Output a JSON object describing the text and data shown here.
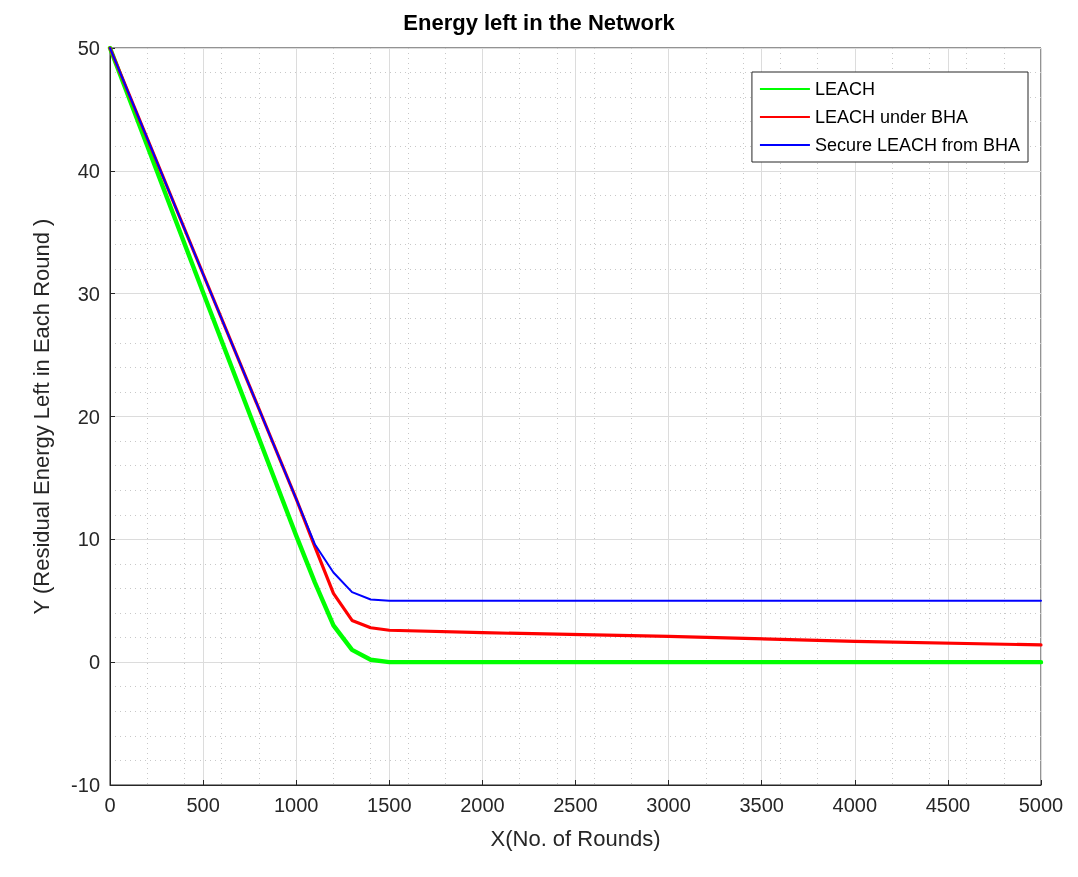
{
  "chart_data": {
    "type": "line",
    "title": "Energy left in the Network",
    "xlabel": "X(No. of Rounds)",
    "ylabel": "Y (Residual Energy Left in Each Round )",
    "xlim": [
      0,
      5000
    ],
    "xticks": [
      0,
      500,
      1000,
      1500,
      2000,
      2500,
      3000,
      3500,
      4000,
      4500,
      5000
    ],
    "ylim": [
      -10,
      50
    ],
    "yticks": [
      -10,
      0,
      10,
      20,
      30,
      40,
      50
    ],
    "grid": true,
    "legend": "top right",
    "marker": "none",
    "line_style": "solid",
    "series": [
      {
        "name": "LEACH",
        "color": "#00ff00",
        "x": [
          0,
          500,
          1000,
          1100,
          1200,
          1300,
          1400,
          1500,
          2000,
          3000,
          4000,
          5000
        ],
        "values": [
          50,
          30.1,
          10.3,
          6.5,
          3.0,
          1.0,
          0.2,
          0,
          0,
          0,
          0,
          0
        ]
      },
      {
        "name": "LEACH under BHA",
        "color": "#ff0000",
        "x": [
          0,
          500,
          1000,
          1100,
          1200,
          1300,
          1400,
          1500,
          2000,
          3000,
          4000,
          5000
        ],
        "values": [
          50,
          31.6,
          13.3,
          9.4,
          5.6,
          3.4,
          2.8,
          2.6,
          2.4,
          2.1,
          1.7,
          1.4
        ]
      },
      {
        "name": "Secure LEACH from BHA",
        "color": "#0000ff",
        "x": [
          0,
          500,
          1000,
          1100,
          1200,
          1300,
          1400,
          1500,
          2000,
          3000,
          4000,
          5000
        ],
        "values": [
          50,
          31.6,
          13.3,
          9.6,
          7.3,
          5.7,
          5.1,
          5.0,
          5.0,
          5.0,
          5.0,
          5.0
        ]
      }
    ]
  }
}
